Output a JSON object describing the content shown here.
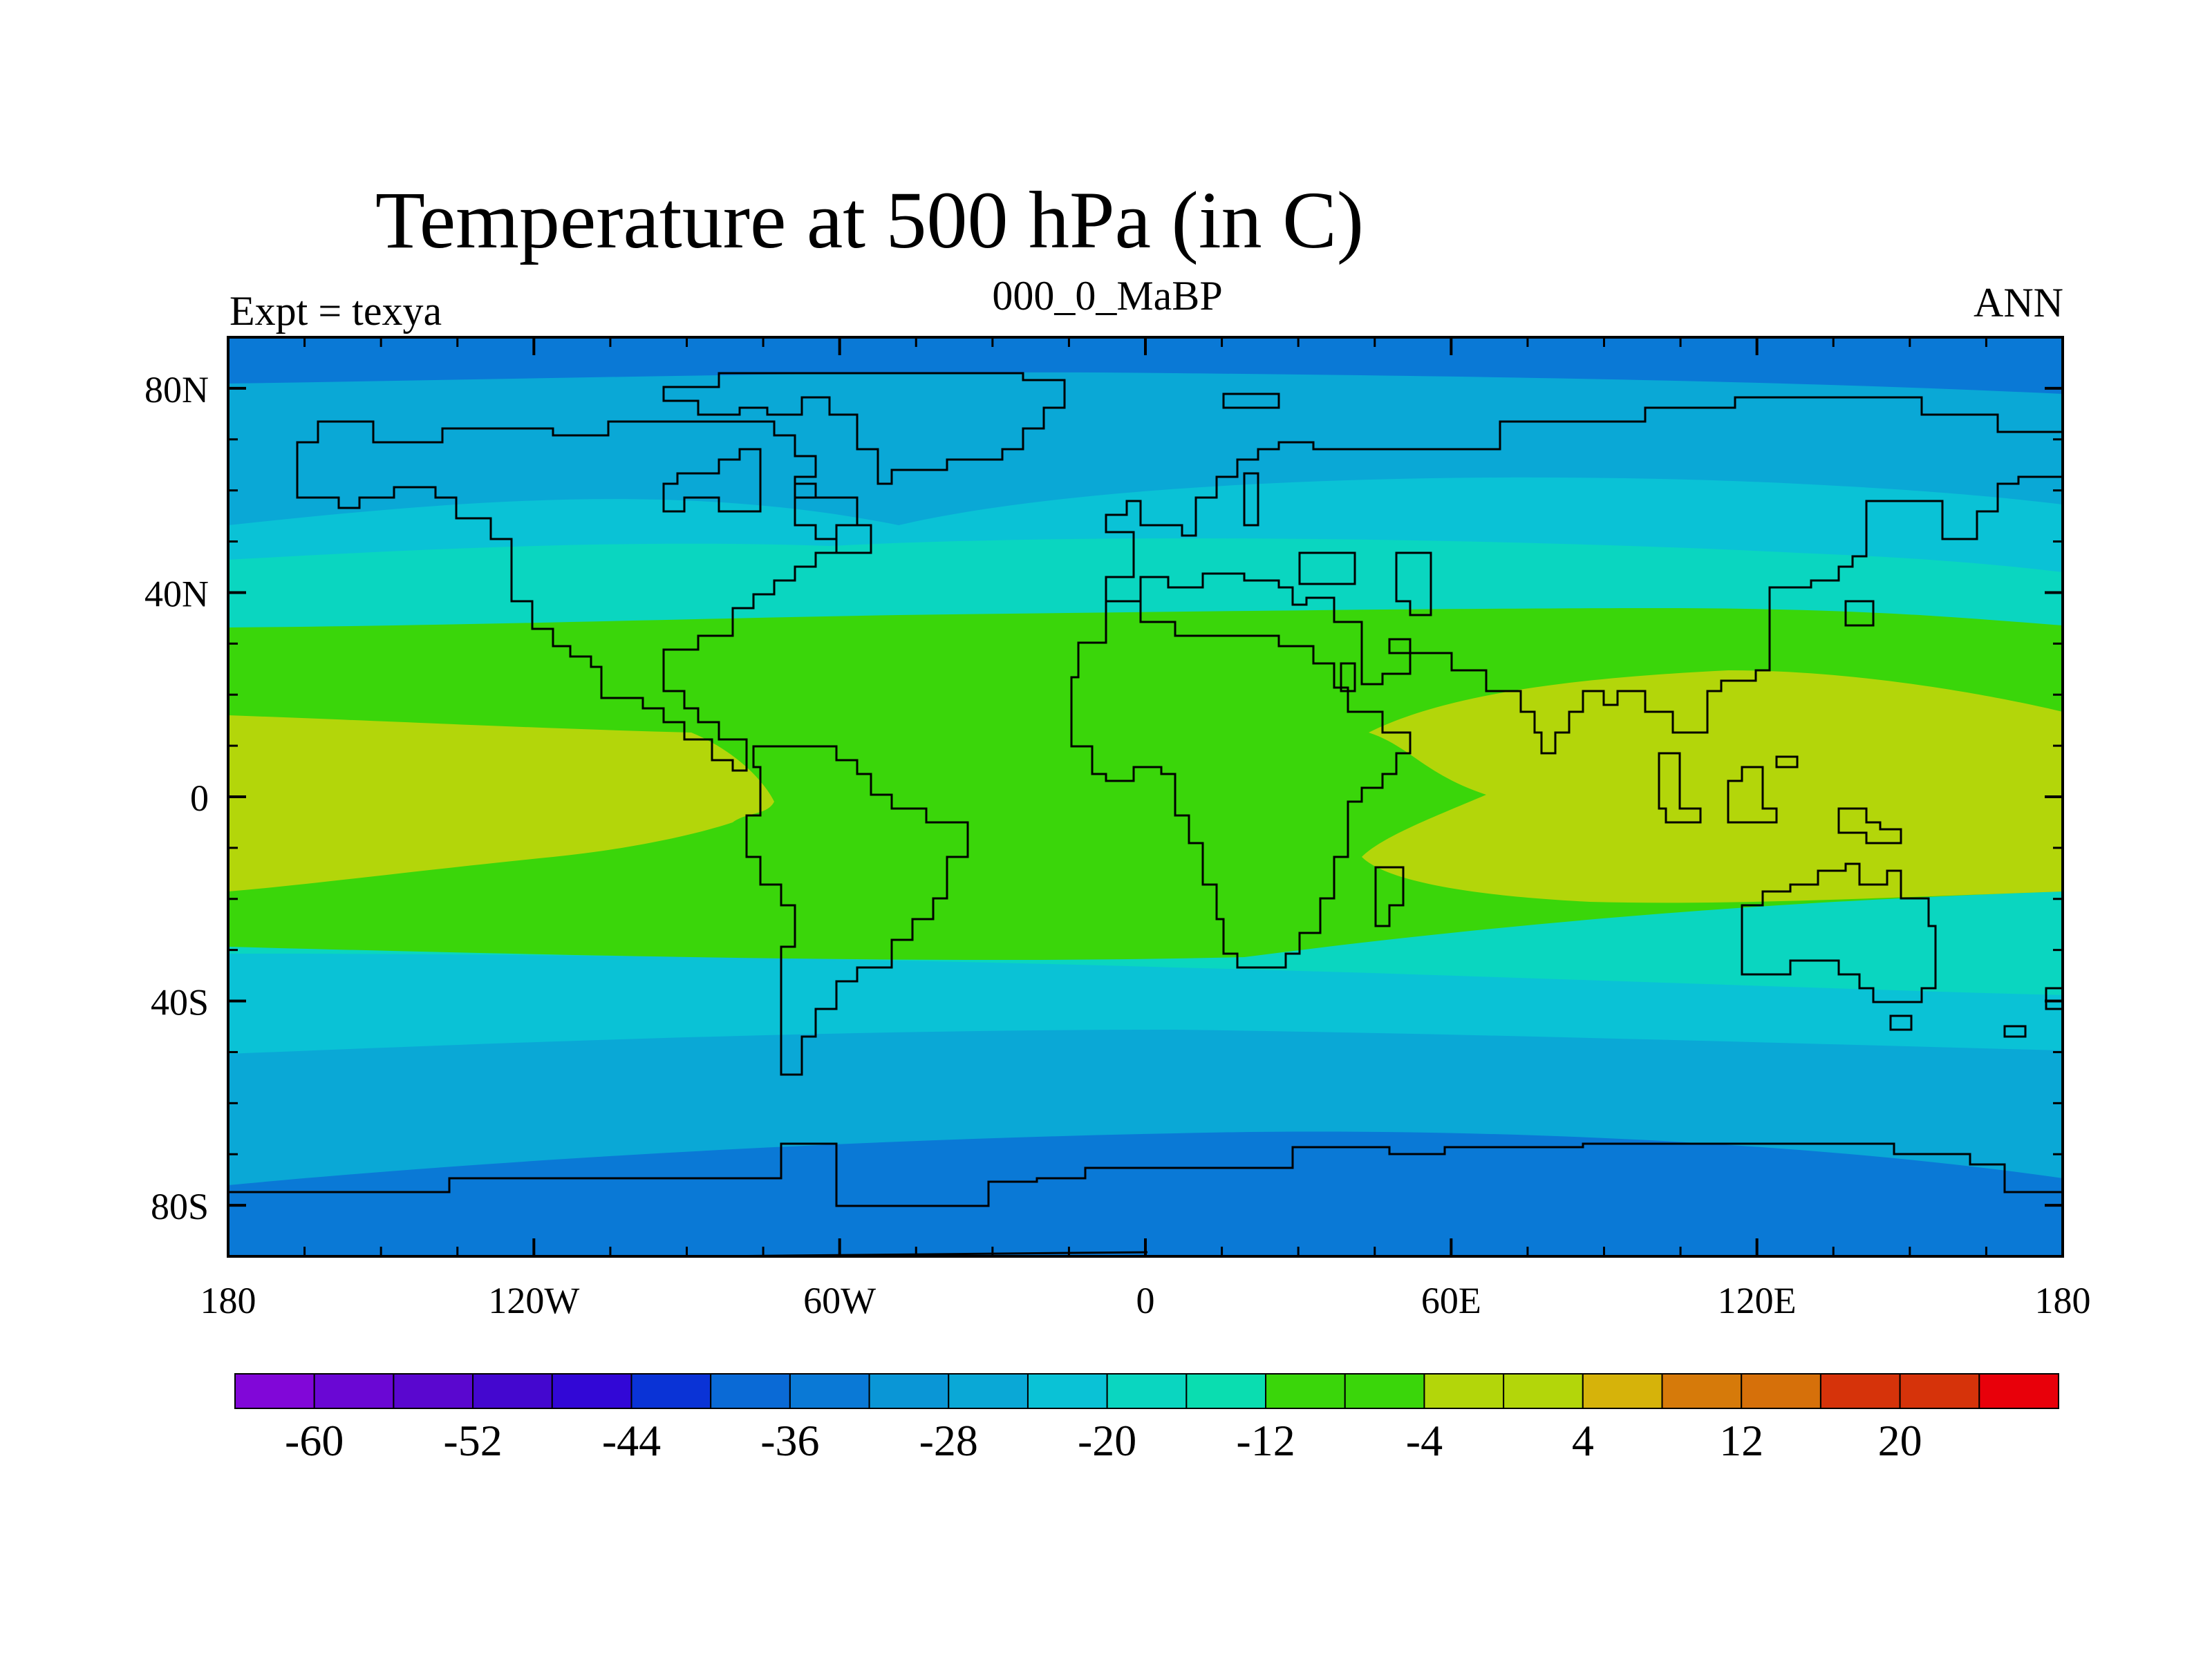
{
  "title": "Temperature at 500 hPa (in C)",
  "subtitle_left": "Expt = texya",
  "subtitle_center": "000_0_MaBP",
  "subtitle_right": "ANN",
  "map": {
    "lat_ticks": [
      "80N",
      "40N",
      "0",
      "40S",
      "80S"
    ],
    "lon_ticks": [
      "180",
      "120W",
      "60W",
      "0",
      "60E",
      "120E",
      "180"
    ],
    "lat_range": [
      -90,
      90
    ],
    "lon_range": [
      -180,
      180
    ],
    "projection": "cylindrical equidistant"
  },
  "colorbar": {
    "colors": [
      "#8107d8",
      "#6a07d4",
      "#5a07cf",
      "#4407cf",
      "#3207d6",
      "#0a33d6",
      "#0a6ad6",
      "#0a79d6",
      "#0a96d6",
      "#0aa8d6",
      "#0ac2d6",
      "#0ad6c0",
      "#0addb0",
      "#3ad60a",
      "#3ad60a",
      "#b3d60a",
      "#b3d60a",
      "#d6b30a",
      "#d67a0a",
      "#d6700a",
      "#d6330a",
      "#d6330a",
      "#e8000a"
    ],
    "labels": [
      "-60",
      "-52",
      "-44",
      "-36",
      "-28",
      "-20",
      "-12",
      "-4",
      "4",
      "12",
      "20"
    ]
  },
  "chart_data": {
    "type": "heatmap",
    "title": "Temperature at 500 hPa (in C)",
    "variable": "Temperature at 500 hPa",
    "units": "C",
    "season": "ANN",
    "experiment": "texya",
    "period": "000_0_MaBP",
    "contour_levels": [
      -64,
      -60,
      -56,
      -52,
      -48,
      -44,
      -40,
      -36,
      -32,
      -28,
      -24,
      -20,
      -16,
      -12,
      -8,
      -4,
      0,
      4,
      8,
      12,
      16,
      20,
      24
    ],
    "zonal_band_values_approx": [
      {
        "lat_range": [
          80,
          90
        ],
        "value_range": [
          -40,
          -36
        ]
      },
      {
        "lat_range": [
          60,
          80
        ],
        "value_range": [
          -32,
          -28
        ]
      },
      {
        "lat_range": [
          50,
          60
        ],
        "value_range": [
          -24,
          -20
        ]
      },
      {
        "lat_range": [
          35,
          50
        ],
        "value_range": [
          -20,
          -16
        ]
      },
      {
        "lat_range": [
          15,
          35
        ],
        "value_range": [
          -12,
          -8
        ]
      },
      {
        "lat_range": [
          -15,
          15
        ],
        "value_range": [
          -8,
          -4
        ]
      },
      {
        "lat_range": [
          -35,
          -15
        ],
        "value_range": [
          -12,
          -8
        ]
      },
      {
        "lat_range": [
          -50,
          -35
        ],
        "value_range": [
          -20,
          -16
        ]
      },
      {
        "lat_range": [
          -60,
          -50
        ],
        "value_range": [
          -24,
          -20
        ]
      },
      {
        "lat_range": [
          -75,
          -60
        ],
        "value_range": [
          -32,
          -28
        ]
      },
      {
        "lat_range": [
          -90,
          -75
        ],
        "value_range": [
          -40,
          -36
        ]
      }
    ]
  }
}
